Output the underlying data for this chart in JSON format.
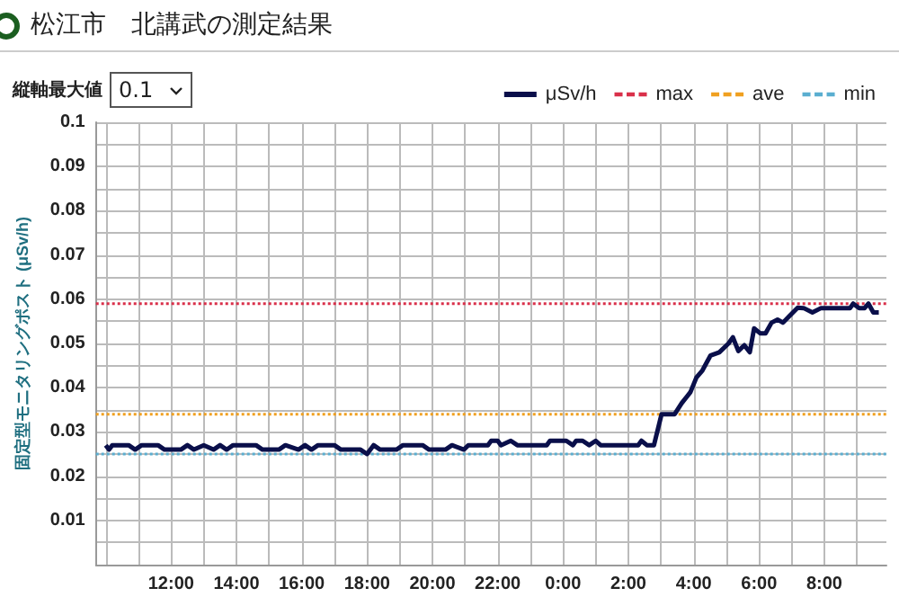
{
  "chart_data": {
    "type": "line",
    "title": "松江市　北講武の測定結果",
    "ylabel": "固定型モニタリングポスト (μSv/h)",
    "annotations": [
      "縦軸最大値",
      "0.1"
    ],
    "xlim": [
      "--01-01T09:42",
      "--01-02T09:54"
    ],
    "xticks": [
      {
        "value": "--01-01T10:00",
        "label": null
      },
      {
        "value": "--01-01T11:00",
        "label": null
      },
      {
        "value": "--01-01T12:00",
        "label": "12:00"
      },
      {
        "value": "--01-01T13:00",
        "label": null
      },
      {
        "value": "--01-01T14:00",
        "label": "14:00"
      },
      {
        "value": "--01-01T15:00",
        "label": null
      },
      {
        "value": "--01-01T16:00",
        "label": "16:00"
      },
      {
        "value": "--01-01T17:00",
        "label": null
      },
      {
        "value": "--01-01T18:00",
        "label": "18:00"
      },
      {
        "value": "--01-01T19:00",
        "label": null
      },
      {
        "value": "--01-01T20:00",
        "label": "20:00"
      },
      {
        "value": "--01-01T21:00",
        "label": null
      },
      {
        "value": "--01-01T22:00",
        "label": "22:00"
      },
      {
        "value": "--01-01T23:00",
        "label": null
      },
      {
        "value": "--01-02T00:00",
        "label": "0:00"
      },
      {
        "value": "--01-02T01:00",
        "label": null
      },
      {
        "value": "--01-02T02:00",
        "label": "2:00"
      },
      {
        "value": "--01-02T03:00",
        "label": null
      },
      {
        "value": "--01-02T04:00",
        "label": "4:00"
      },
      {
        "value": "--01-02T05:00",
        "label": null
      },
      {
        "value": "--01-02T06:00",
        "label": "6:00"
      },
      {
        "value": "--01-02T07:00",
        "label": null
      },
      {
        "value": "--01-02T08:00",
        "label": "8:00"
      },
      {
        "value": "--01-02T09:00",
        "label": null
      }
    ],
    "ylim": [
      0,
      0.1
    ],
    "yticks": [
      {
        "value": 0.005,
        "label": null
      },
      0.01,
      {
        "value": 0.015,
        "label": null
      },
      0.02,
      {
        "value": 0.025,
        "label": null
      },
      0.03,
      {
        "value": 0.035,
        "label": null
      },
      0.04,
      {
        "value": 0.045,
        "label": null
      },
      0.05,
      {
        "value": 0.055,
        "label": null
      },
      0.06,
      {
        "value": 0.065,
        "label": null
      },
      0.07,
      {
        "value": 0.075,
        "label": null
      },
      0.08,
      {
        "value": 0.085,
        "label": null
      },
      0.09,
      {
        "value": 0.095,
        "label": null
      },
      0.1
    ],
    "grid": true,
    "legend": "top right",
    "marker": "none",
    "line_style": "solid",
    "series": [
      {
        "name": "μSv/h",
        "color": "#0a0f4a",
        "x": [
          "--01-01T10:00",
          "--01-01T10:06",
          "--01-01T10:12",
          "--01-01T10:42",
          "--01-01T10:54",
          "--01-01T11:06",
          "--01-01T11:36",
          "--01-01T11:48",
          "--01-01T12:18",
          "--01-01T12:30",
          "--01-01T12:42",
          "--01-01T13:00",
          "--01-01T13:18",
          "--01-01T13:30",
          "--01-01T13:42",
          "--01-01T13:54",
          "--01-01T14:36",
          "--01-01T14:48",
          "--01-01T15:18",
          "--01-01T15:30",
          "--01-01T15:54",
          "--01-01T16:06",
          "--01-01T16:18",
          "--01-01T16:30",
          "--01-01T17:00",
          "--01-01T17:12",
          "--01-01T17:48",
          "--01-01T18:00",
          "--01-01T18:12",
          "--01-01T18:24",
          "--01-01T18:54",
          "--01-01T19:06",
          "--01-01T19:42",
          "--01-01T19:54",
          "--01-01T20:24",
          "--01-01T20:36",
          "--01-01T20:58",
          "--01-01T21:06",
          "--01-01T21:42",
          "--01-01T21:48",
          "--01-01T22:00",
          "--01-01T22:06",
          "--01-01T22:24",
          "--01-01T22:36",
          "--01-01T23:30",
          "--01-01T23:36",
          "--01-02T00:06",
          "--01-02T00:18",
          "--01-02T00:24",
          "--01-02T00:36",
          "--01-02T00:48",
          "--01-02T01:00",
          "--01-02T01:09",
          "--01-02T02:18",
          "--01-02T02:24",
          "--01-02T02:34",
          "--01-02T02:47",
          "--01-02T03:01",
          "--01-02T03:25",
          "--01-02T03:38",
          "--01-02T03:54",
          "--01-02T04:05",
          "--01-02T04:16",
          "--01-02T04:31",
          "--01-02T04:47",
          "--01-02T05:04",
          "--01-02T05:12",
          "--01-02T05:22",
          "--01-02T05:33",
          "--01-02T05:43",
          "--01-02T05:51",
          "--01-02T06:02",
          "--01-02T06:12",
          "--01-02T06:23",
          "--01-02T06:34",
          "--01-02T06:44",
          "--01-02T06:55",
          "--01-02T07:11",
          "--01-02T07:22",
          "--01-02T07:38",
          "--01-02T07:54",
          "--01-02T08:47",
          "--01-02T08:53",
          "--01-02T09:04",
          "--01-02T09:14",
          "--01-02T09:21",
          "--01-02T09:30",
          "--01-02T09:40"
        ],
        "values": [
          0.027,
          0.026,
          0.027,
          0.027,
          0.026,
          0.027,
          0.027,
          0.026,
          0.026,
          0.027,
          0.026,
          0.027,
          0.026,
          0.027,
          0.026,
          0.027,
          0.027,
          0.026,
          0.026,
          0.027,
          0.026,
          0.027,
          0.026,
          0.027,
          0.027,
          0.026,
          0.026,
          0.025,
          0.027,
          0.026,
          0.026,
          0.027,
          0.027,
          0.026,
          0.026,
          0.027,
          0.026,
          0.027,
          0.027,
          0.028,
          0.028,
          0.027,
          0.028,
          0.027,
          0.027,
          0.028,
          0.028,
          0.027,
          0.028,
          0.028,
          0.027,
          0.028,
          0.027,
          0.027,
          0.028,
          0.027,
          0.027,
          0.034,
          0.034,
          0.0365,
          0.039,
          0.0423,
          0.0439,
          0.0473,
          0.048,
          0.05,
          0.0514,
          0.0483,
          0.0496,
          0.048,
          0.0534,
          0.0523,
          0.0523,
          0.0547,
          0.0554,
          0.0547,
          0.0561,
          0.0581,
          0.058,
          0.057,
          0.058,
          0.058,
          0.059,
          0.058,
          0.058,
          0.059,
          0.057,
          0.057
        ]
      }
    ],
    "ref_lines": [
      {
        "axis": "y",
        "value": 0.059,
        "label": "max",
        "color": "#d9304a",
        "line_style": "dotted"
      },
      {
        "axis": "y",
        "value": 0.034,
        "label": "ave",
        "color": "#f0a020",
        "line_style": "dotted"
      },
      {
        "axis": "y",
        "value": 0.025,
        "label": "min",
        "color": "#5aaed0",
        "line_style": "dotted"
      }
    ]
  }
}
